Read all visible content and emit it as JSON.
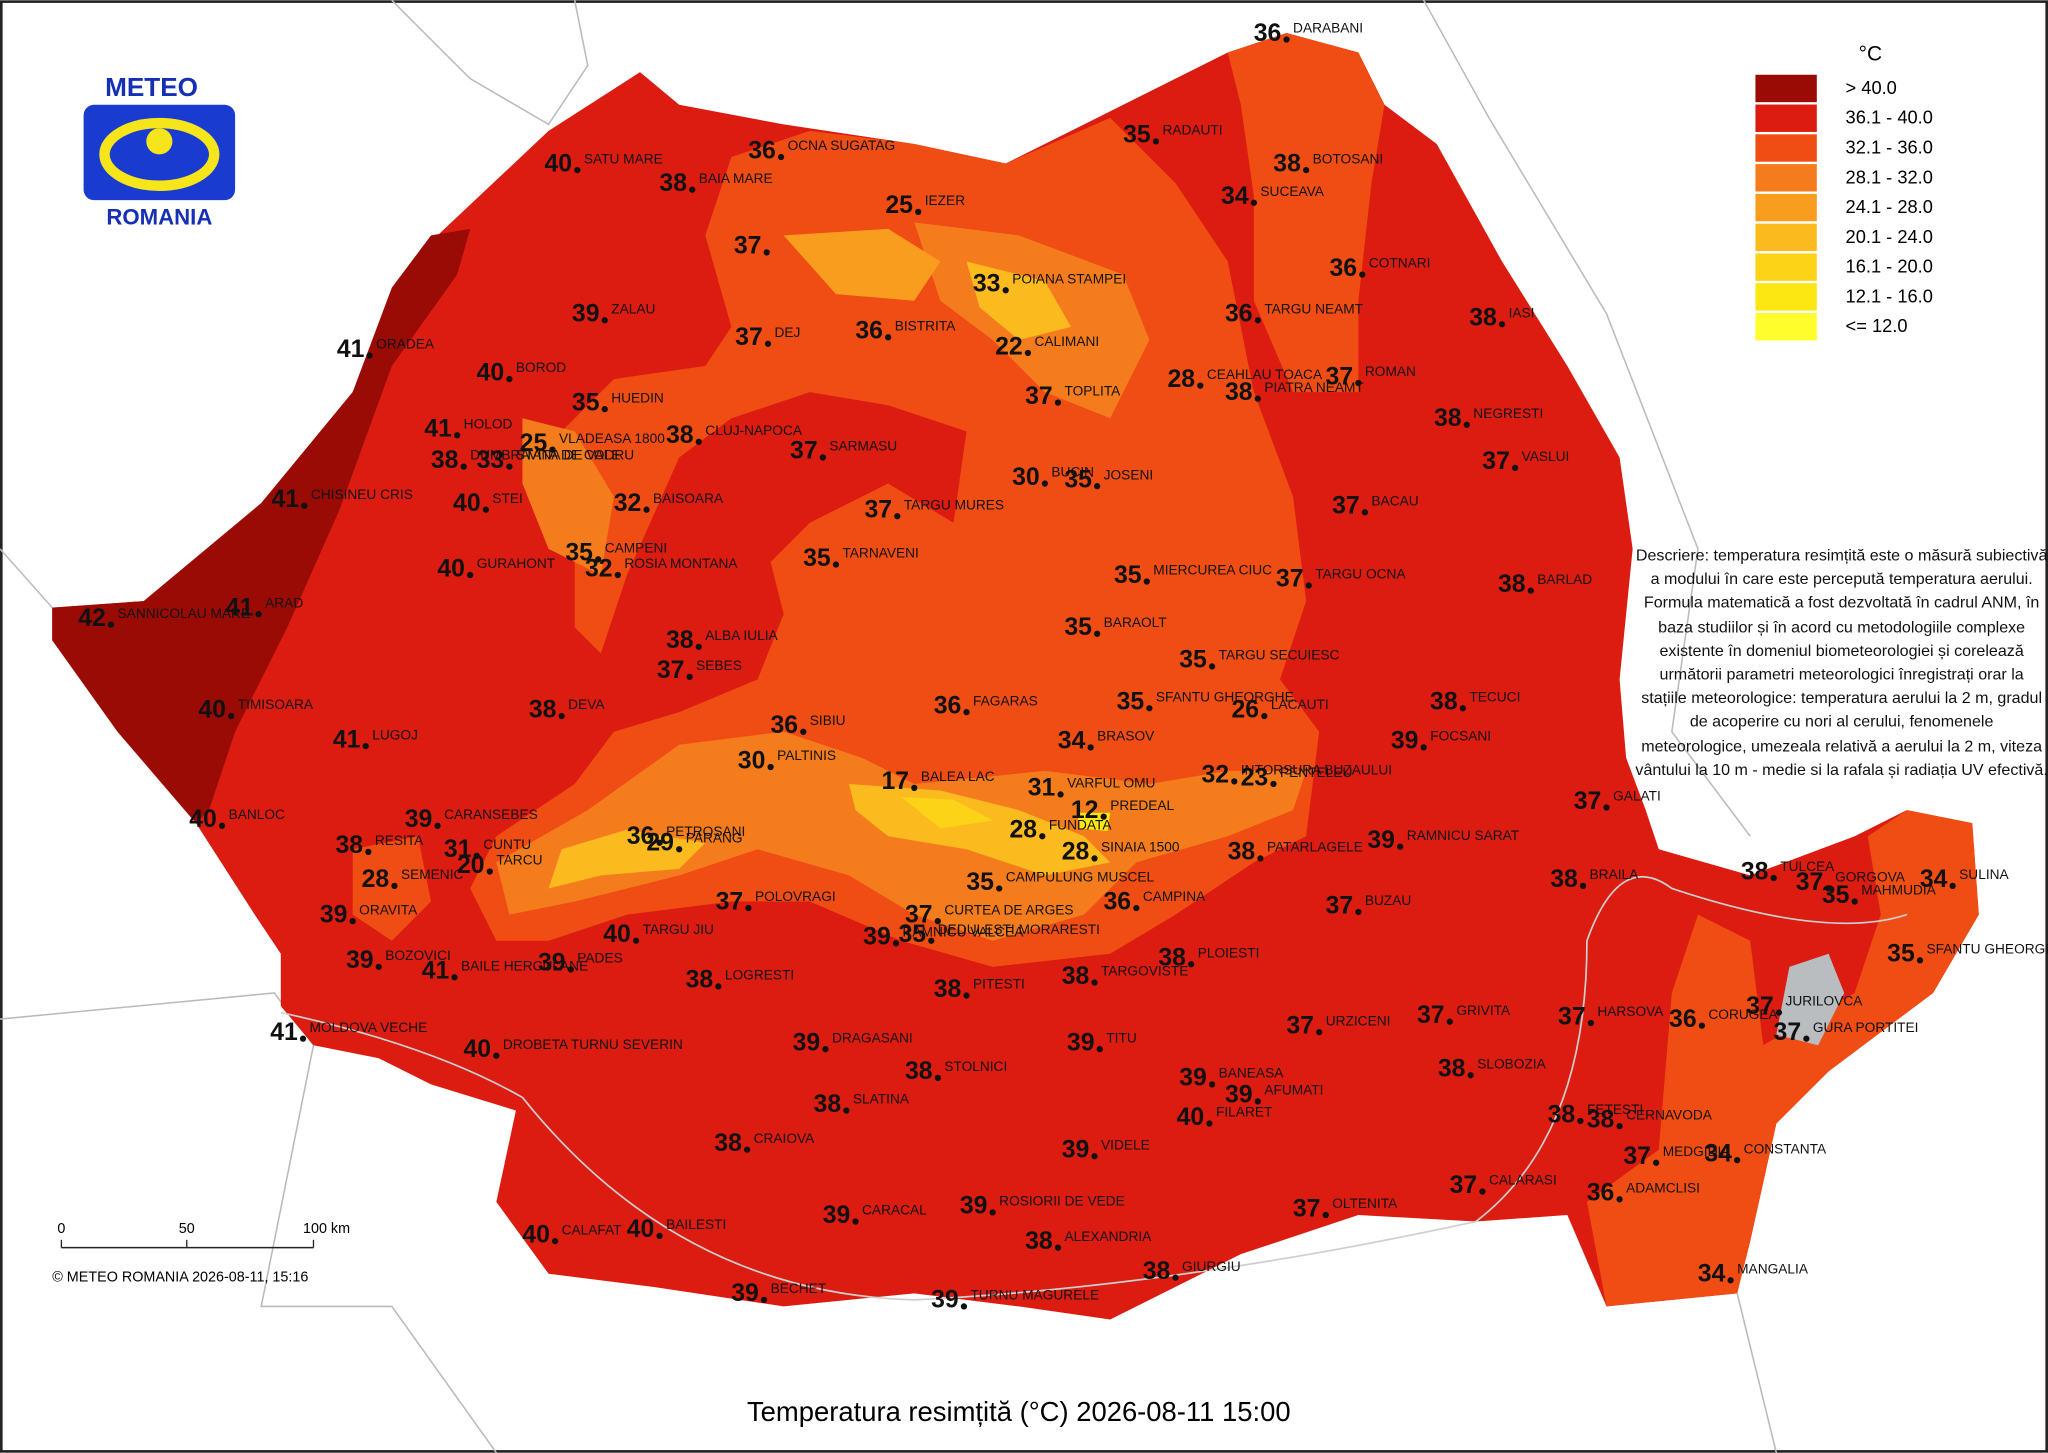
{
  "header": {
    "logo_top": "METEO",
    "logo_bottom": "ROMANIA"
  },
  "legend": {
    "unit": "°C",
    "items": [
      {
        "label": "> 40.0",
        "color": "#9a0b06"
      },
      {
        "label": "36.1 - 40.0",
        "color": "#dc1c10"
      },
      {
        "label": "32.1 - 36.0",
        "color": "#f04d14"
      },
      {
        "label": "28.1 - 32.0",
        "color": "#f57c1d"
      },
      {
        "label": "24.1 - 28.0",
        "color": "#f99d1f"
      },
      {
        "label": "20.1 - 24.0",
        "color": "#fbbb1f"
      },
      {
        "label": "16.1 - 20.0",
        "color": "#fdd317"
      },
      {
        "label": "12.1 - 16.0",
        "color": "#fde713"
      },
      {
        "label": "<= 12.0",
        "color": "#fffd2c"
      }
    ]
  },
  "stations": [
    {
      "name": "DARABANI",
      "value": 36
    },
    {
      "name": "RADAUTI",
      "value": 35
    },
    {
      "name": "BOTOSANI",
      "value": 38
    },
    {
      "name": "SUCEAVA",
      "value": 34
    },
    {
      "name": "OCNA SUGATAG",
      "value": 36
    },
    {
      "name": "SATU MARE",
      "value": 40
    },
    {
      "name": "BAIA MARE",
      "value": 38
    },
    {
      "name": "IEZER",
      "value": 25
    },
    {
      "name": null,
      "value": 37
    },
    {
      "name": "POIANA STAMPEI",
      "value": 33
    },
    {
      "name": "COTNARI",
      "value": 36
    },
    {
      "name": "TARGU NEAMT",
      "value": 36
    },
    {
      "name": "IASI",
      "value": 38
    },
    {
      "name": "ZALAU",
      "value": 39
    },
    {
      "name": "DEJ",
      "value": 37
    },
    {
      "name": "BISTRITA",
      "value": 36
    },
    {
      "name": "CALIMANI",
      "value": 22
    },
    {
      "name": "ORADEA",
      "value": 41
    },
    {
      "name": "BOROD",
      "value": 40
    },
    {
      "name": "CEAHLAU TOACA",
      "value": 28
    },
    {
      "name": "PIATRA NEAMT",
      "value": 38
    },
    {
      "name": "ROMAN",
      "value": 37
    },
    {
      "name": "VLADEASA 1800",
      "value": 25
    },
    {
      "name": "HUEDIN",
      "value": 35
    },
    {
      "name": "TOPLITA",
      "value": 37
    },
    {
      "name": "NEGRESTI",
      "value": 38
    },
    {
      "name": "HOLOD",
      "value": 41
    },
    {
      "name": "CLUJ-NAPOCA",
      "value": 38
    },
    {
      "name": "SARMASU",
      "value": 37
    },
    {
      "name": "DUMBRAVITA DE CODRU",
      "value": 38
    },
    {
      "name": "STANA DE VALE",
      "value": 33
    },
    {
      "name": "STEI",
      "value": 40
    },
    {
      "name": "CHISINEU CRIS",
      "value": 41
    },
    {
      "name": "BAISOARA",
      "value": 32
    },
    {
      "name": "TARGU MURES",
      "value": 37
    },
    {
      "name": "BUCIN",
      "value": 30
    },
    {
      "name": "JOSENI",
      "value": 35
    },
    {
      "name": "VASLUI",
      "value": 37
    },
    {
      "name": "BACAU",
      "value": 37
    },
    {
      "name": "GURAHONT",
      "value": 40
    },
    {
      "name": "CAMPENI",
      "value": 35
    },
    {
      "name": "ROSIA MONTANA",
      "value": 32
    },
    {
      "name": "TARNAVENI",
      "value": 35
    },
    {
      "name": "MIERCUREA CIUC",
      "value": 35
    },
    {
      "name": "TARGU OCNA",
      "value": 37
    },
    {
      "name": "BARLAD",
      "value": 38
    },
    {
      "name": "SANNICOLAU MARE",
      "value": 42
    },
    {
      "name": "ARAD",
      "value": 41
    },
    {
      "name": "ALBA IULIA",
      "value": 38
    },
    {
      "name": "SEBES",
      "value": 37
    },
    {
      "name": "BARAOLT",
      "value": 35
    },
    {
      "name": "TARGU SECUIESC",
      "value": 35
    },
    {
      "name": "SFANTU GHEORGHE",
      "value": 35
    },
    {
      "name": "DEVA",
      "value": 38
    },
    {
      "name": "TIMISOARA",
      "value": 40
    },
    {
      "name": "SIBIU",
      "value": 36
    },
    {
      "name": "FAGARAS",
      "value": 36
    },
    {
      "name": "LACAUTI",
      "value": 26
    },
    {
      "name": "TECUCI",
      "value": 38
    },
    {
      "name": "LUGOJ",
      "value": 41
    },
    {
      "name": "PALTINIS",
      "value": 30
    },
    {
      "name": "BRASOV",
      "value": 34
    },
    {
      "name": "INTORSURA BUZAULUI",
      "value": 32
    },
    {
      "name": "PENTELEU",
      "value": 23
    },
    {
      "name": "FOCSANI",
      "value": 39
    },
    {
      "name": "BALEA LAC",
      "value": 17
    },
    {
      "name": "VARFUL OMU",
      "value": 31
    },
    {
      "name": "BANLOC",
      "value": 40
    },
    {
      "name": "CARANSEBES",
      "value": 39
    },
    {
      "name": "PETROSANI",
      "value": 36
    },
    {
      "name": "PARANG",
      "value": 29
    },
    {
      "name": "PREDEAL",
      "value": 12
    },
    {
      "name": "FUNDATA",
      "value": 28
    },
    {
      "name": "SINAIA 1500",
      "value": 28
    },
    {
      "name": "RESITA",
      "value": 38
    },
    {
      "name": "CUNTU",
      "value": 31
    },
    {
      "name": "TARCU",
      "value": 20
    },
    {
      "name": "GALATI",
      "value": 37
    },
    {
      "name": "RAMNICU SARAT",
      "value": 39
    },
    {
      "name": "PATARLAGELE",
      "value": 38
    },
    {
      "name": "SEMENIC",
      "value": 28
    },
    {
      "name": "CURTEA DE ARGES",
      "value": 37
    },
    {
      "name": "CAMPULUNG MUSCEL",
      "value": 35
    },
    {
      "name": "CAMPINA",
      "value": 36
    },
    {
      "name": "BUZAU",
      "value": 37
    },
    {
      "name": "BRAILA",
      "value": 38
    },
    {
      "name": "TULCEA",
      "value": 38
    },
    {
      "name": "GORGOVA",
      "value": 37
    },
    {
      "name": "MAHMUDIA",
      "value": 35
    },
    {
      "name": "SULINA",
      "value": 34
    },
    {
      "name": "ORAVITA",
      "value": 39
    },
    {
      "name": "TARGU JIU",
      "value": 40
    },
    {
      "name": "POLOVRAGI",
      "value": 37
    },
    {
      "name": "RAMNICU VALCEA",
      "value": 39
    },
    {
      "name": "DEDULESTI MORARESTI",
      "value": 35
    },
    {
      "name": "PADES",
      "value": 39
    },
    {
      "name": "BAILE HERCULANE",
      "value": 41
    },
    {
      "name": "BOZOVICI",
      "value": 39
    },
    {
      "name": "SFANTU GHEORGHE",
      "value": 35
    },
    {
      "name": "PLOIESTI",
      "value": 38
    },
    {
      "name": "TARGOVISTE",
      "value": 38
    },
    {
      "name": "LOGRESTI",
      "value": 38
    },
    {
      "name": "PITESTI",
      "value": 38
    },
    {
      "name": "MOLDOVA VECHE",
      "value": 41
    },
    {
      "name": "GURA PORTITEI",
      "value": 37
    },
    {
      "name": "JURILOVCA",
      "value": 37
    },
    {
      "name": "CORUGEA",
      "value": 36
    },
    {
      "name": "HARSOVA",
      "value": 37
    },
    {
      "name": "GRIVITA",
      "value": 37
    },
    {
      "name": "URZICENI",
      "value": 37
    },
    {
      "name": "DROBETA TURNU SEVERIN",
      "value": 40
    },
    {
      "name": "DRAGASANI",
      "value": 39
    },
    {
      "name": "TITU",
      "value": 39
    },
    {
      "name": "STOLNICI",
      "value": 38
    },
    {
      "name": "SLOBOZIA",
      "value": 38
    },
    {
      "name": "AFUMATI",
      "value": 39
    },
    {
      "name": "BANEASA",
      "value": 39
    },
    {
      "name": "FILARET",
      "value": 40
    },
    {
      "name": "SLATINA",
      "value": 38
    },
    {
      "name": "FETESTI",
      "value": 38
    },
    {
      "name": "CERNAVODA",
      "value": 38
    },
    {
      "name": "CRAIOVA",
      "value": 38
    },
    {
      "name": "VIDELE",
      "value": 39
    },
    {
      "name": "CONSTANTA",
      "value": 34
    },
    {
      "name": "MEDGIDIA",
      "value": 37
    },
    {
      "name": "CALARASI",
      "value": 37
    },
    {
      "name": "ROSIORII DE VEDE",
      "value": 39
    },
    {
      "name": "ADAMCLISI",
      "value": 36
    },
    {
      "name": "CARACAL",
      "value": 39
    },
    {
      "name": "OLTENITA",
      "value": 37
    },
    {
      "name": "CALAFAT",
      "value": 40
    },
    {
      "name": "BAILESTI",
      "value": 40
    },
    {
      "name": "ALEXANDRIA",
      "value": 38
    },
    {
      "name": "GIURGIU",
      "value": 38
    },
    {
      "name": "MANGALIA",
      "value": 34
    },
    {
      "name": "BECHET",
      "value": 39
    },
    {
      "name": "TURNU MAGURELE",
      "value": 39
    }
  ],
  "description": "Descriere: temperatura resimțită este o măsură subiectivă a modului în care este percepută temperatura aerului. Formula matematică a fost dezvoltată în cadrul ANM, în baza studiilor și în acord cu metodologiile complexe existente în domeniul biometeorologiei și corelează următorii parametri meteorologici înregistrați orar la stațiile meteorologice: temperatura aerului la 2 m, gradul de acoperire cu nori al cerului, fenomenele meteorologice, umezeala relativă a aerului la 2 m, viteza vântului la 10 m - medie si la rafala și radiația UV efectivă.",
  "scale_bar": {
    "labels": [
      "0",
      "50",
      "100 km"
    ]
  },
  "copyright": "© METEO ROMANIA 2026-08-11, 15:16",
  "title": "Temperatura resimțită (°C) 2026-08-11 15:00"
}
